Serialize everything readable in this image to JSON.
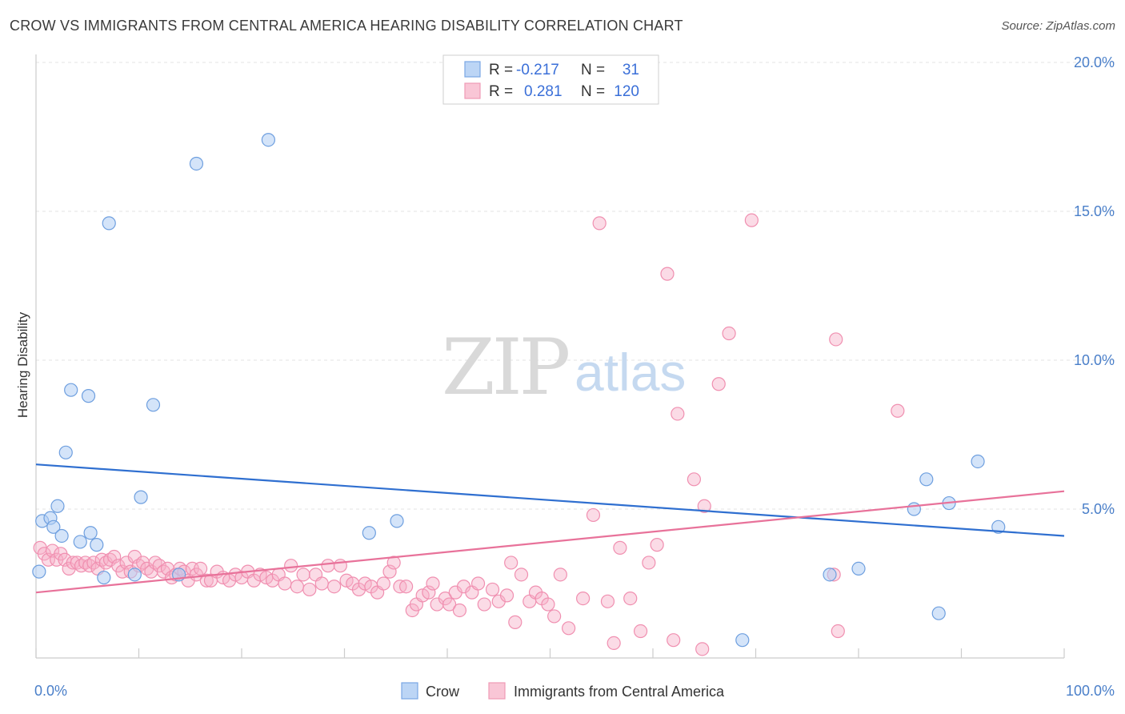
{
  "header": {
    "title": "CROW VS IMMIGRANTS FROM CENTRAL AMERICA HEARING DISABILITY CORRELATION CHART",
    "source": "Source: ZipAtlas.com"
  },
  "watermark": {
    "zip": "ZIP",
    "atlas": "atlas"
  },
  "legend": {
    "rows": [
      {
        "r_label": "R =",
        "r_value": "-0.217",
        "n_label": "N =",
        "n_value": "31"
      },
      {
        "r_label": "R =",
        "r_value": "0.281",
        "n_label": "N =",
        "n_value": "120"
      }
    ]
  },
  "bottom_legend": [
    "Crow",
    "Immigrants from Central America"
  ],
  "chart_data": {
    "type": "scatter",
    "title": "CROW VS IMMIGRANTS FROM CENTRAL AMERICA HEARING DISABILITY CORRELATION CHART",
    "xlabel": "",
    "ylabel": "Hearing Disability",
    "xlim": [
      0,
      100
    ],
    "ylim": [
      0,
      20.0
    ],
    "x_tick_labels": [
      "0.0%",
      "100.0%"
    ],
    "y_ticks": [
      5,
      10,
      15,
      20
    ],
    "y_tick_labels": [
      "5.0%",
      "10.0%",
      "15.0%",
      "20.0%"
    ],
    "grid": "horizontal dashed",
    "legend_placement": "top-center",
    "colors": {
      "crow": "#8ab4ea",
      "crow_line": "#2f6fd0",
      "immigrants": "#f4a6bf",
      "immigrants_line": "#e8729a"
    },
    "series": [
      {
        "name": "Crow",
        "color": "#8ab4ea",
        "trend": {
          "x": [
            0,
            100
          ],
          "y": [
            6.5,
            4.1
          ]
        },
        "points": [
          [
            0.3,
            2.9
          ],
          [
            0.6,
            4.6
          ],
          [
            1.4,
            4.7
          ],
          [
            1.7,
            4.4
          ],
          [
            2.1,
            5.1
          ],
          [
            2.5,
            4.1
          ],
          [
            2.9,
            6.9
          ],
          [
            3.4,
            9.0
          ],
          [
            4.3,
            3.9
          ],
          [
            5.1,
            8.8
          ],
          [
            5.3,
            4.2
          ],
          [
            5.9,
            3.8
          ],
          [
            6.6,
            2.7
          ],
          [
            7.1,
            14.6
          ],
          [
            9.6,
            2.8
          ],
          [
            10.2,
            5.4
          ],
          [
            11.4,
            8.5
          ],
          [
            13.9,
            2.8
          ],
          [
            15.6,
            16.6
          ],
          [
            22.6,
            17.4
          ],
          [
            32.4,
            4.2
          ],
          [
            35.1,
            4.6
          ],
          [
            68.7,
            0.6
          ],
          [
            77.2,
            2.8
          ],
          [
            80.0,
            3.0
          ],
          [
            85.4,
            5.0
          ],
          [
            87.8,
            1.5
          ],
          [
            86.6,
            6.0
          ],
          [
            88.8,
            5.2
          ],
          [
            91.6,
            6.6
          ],
          [
            93.6,
            4.4
          ]
        ]
      },
      {
        "name": "Immigrants from Central America",
        "color": "#f4a6bf",
        "trend": {
          "x": [
            0,
            100
          ],
          "y": [
            2.2,
            5.6
          ]
        },
        "points": [
          [
            0.4,
            3.7
          ],
          [
            0.8,
            3.5
          ],
          [
            1.2,
            3.3
          ],
          [
            1.6,
            3.6
          ],
          [
            2.0,
            3.3
          ],
          [
            2.4,
            3.5
          ],
          [
            2.8,
            3.3
          ],
          [
            3.2,
            3.0
          ],
          [
            3.6,
            3.2
          ],
          [
            4.0,
            3.2
          ],
          [
            4.4,
            3.1
          ],
          [
            4.8,
            3.2
          ],
          [
            5.2,
            3.1
          ],
          [
            5.6,
            3.2
          ],
          [
            6.0,
            3.0
          ],
          [
            6.4,
            3.3
          ],
          [
            6.8,
            3.2
          ],
          [
            7.2,
            3.3
          ],
          [
            7.6,
            3.4
          ],
          [
            8.0,
            3.1
          ],
          [
            8.4,
            2.9
          ],
          [
            8.8,
            3.2
          ],
          [
            9.2,
            2.9
          ],
          [
            9.6,
            3.4
          ],
          [
            10.0,
            3.1
          ],
          [
            10.4,
            3.2
          ],
          [
            10.8,
            3.0
          ],
          [
            11.2,
            2.9
          ],
          [
            11.6,
            3.2
          ],
          [
            12.0,
            3.1
          ],
          [
            12.4,
            2.9
          ],
          [
            12.8,
            3.0
          ],
          [
            13.2,
            2.7
          ],
          [
            13.6,
            2.8
          ],
          [
            14.0,
            3.0
          ],
          [
            14.4,
            2.9
          ],
          [
            14.8,
            2.6
          ],
          [
            15.2,
            3.0
          ],
          [
            15.6,
            2.8
          ],
          [
            16.0,
            3.0
          ],
          [
            16.6,
            2.6
          ],
          [
            17.0,
            2.6
          ],
          [
            17.6,
            2.9
          ],
          [
            18.2,
            2.7
          ],
          [
            18.8,
            2.6
          ],
          [
            19.4,
            2.8
          ],
          [
            20.0,
            2.7
          ],
          [
            20.6,
            2.9
          ],
          [
            21.2,
            2.6
          ],
          [
            21.8,
            2.8
          ],
          [
            22.4,
            2.7
          ],
          [
            23.0,
            2.6
          ],
          [
            23.6,
            2.8
          ],
          [
            24.2,
            2.5
          ],
          [
            24.8,
            3.1
          ],
          [
            25.4,
            2.4
          ],
          [
            26.0,
            2.8
          ],
          [
            26.6,
            2.3
          ],
          [
            27.2,
            2.8
          ],
          [
            27.8,
            2.5
          ],
          [
            28.4,
            3.1
          ],
          [
            29.0,
            2.4
          ],
          [
            29.6,
            3.1
          ],
          [
            30.2,
            2.6
          ],
          [
            30.8,
            2.5
          ],
          [
            31.4,
            2.3
          ],
          [
            32.0,
            2.5
          ],
          [
            32.6,
            2.4
          ],
          [
            33.2,
            2.2
          ],
          [
            33.8,
            2.5
          ],
          [
            34.4,
            2.9
          ],
          [
            34.8,
            3.2
          ],
          [
            35.4,
            2.4
          ],
          [
            36.0,
            2.4
          ],
          [
            36.6,
            1.6
          ],
          [
            37.0,
            1.8
          ],
          [
            37.6,
            2.1
          ],
          [
            38.2,
            2.2
          ],
          [
            38.6,
            2.5
          ],
          [
            39.0,
            1.8
          ],
          [
            39.8,
            2.0
          ],
          [
            40.2,
            1.8
          ],
          [
            40.8,
            2.2
          ],
          [
            41.2,
            1.6
          ],
          [
            41.6,
            2.4
          ],
          [
            42.4,
            2.2
          ],
          [
            43.0,
            2.5
          ],
          [
            43.6,
            1.8
          ],
          [
            44.4,
            2.3
          ],
          [
            45.0,
            1.9
          ],
          [
            45.8,
            2.1
          ],
          [
            46.2,
            3.2
          ],
          [
            46.6,
            1.2
          ],
          [
            47.2,
            2.8
          ],
          [
            48.0,
            1.9
          ],
          [
            48.6,
            2.2
          ],
          [
            49.2,
            2.0
          ],
          [
            49.8,
            1.8
          ],
          [
            50.4,
            1.4
          ],
          [
            51.0,
            2.8
          ],
          [
            51.8,
            1.0
          ],
          [
            53.2,
            2.0
          ],
          [
            54.2,
            4.8
          ],
          [
            54.8,
            14.6
          ],
          [
            55.6,
            1.9
          ],
          [
            56.2,
            0.5
          ],
          [
            56.8,
            3.7
          ],
          [
            57.8,
            2.0
          ],
          [
            58.8,
            0.9
          ],
          [
            59.6,
            3.2
          ],
          [
            60.4,
            3.8
          ],
          [
            61.4,
            12.9
          ],
          [
            62.0,
            0.6
          ],
          [
            62.4,
            8.2
          ],
          [
            64.0,
            6.0
          ],
          [
            64.8,
            0.3
          ],
          [
            65.0,
            5.1
          ],
          [
            66.4,
            9.2
          ],
          [
            67.4,
            10.9
          ],
          [
            69.6,
            14.7
          ],
          [
            77.6,
            2.8
          ],
          [
            77.8,
            10.7
          ],
          [
            78.0,
            0.9
          ],
          [
            83.8,
            8.3
          ]
        ]
      }
    ]
  }
}
